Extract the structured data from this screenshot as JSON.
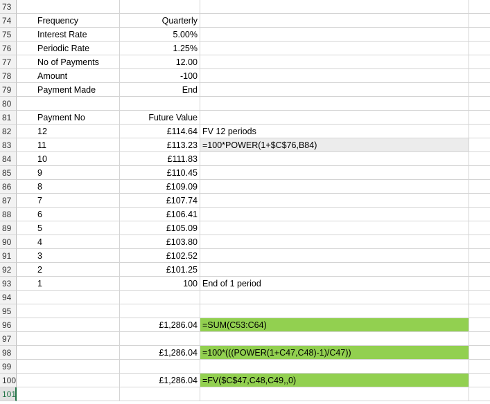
{
  "rows": [
    {
      "num": "73",
      "b": "",
      "c": "",
      "d": "",
      "style": ""
    },
    {
      "num": "74",
      "b": "Frequency",
      "c": "Quarterly",
      "d": "",
      "style": ""
    },
    {
      "num": "75",
      "b": "Interest Rate",
      "c": "5.00%",
      "d": "",
      "style": ""
    },
    {
      "num": "76",
      "b": "Periodic Rate",
      "c": "1.25%",
      "d": "",
      "style": ""
    },
    {
      "num": "77",
      "b": "No of Payments",
      "c": "12.00",
      "d": "",
      "style": ""
    },
    {
      "num": "78",
      "b": "Amount",
      "c": "-100",
      "d": "",
      "style": ""
    },
    {
      "num": "79",
      "b": "Payment Made",
      "c": "End",
      "d": "",
      "style": ""
    },
    {
      "num": "80",
      "b": "",
      "c": "",
      "d": "",
      "style": ""
    },
    {
      "num": "81",
      "b": "Payment No",
      "c": "Future Value",
      "d": "",
      "style": ""
    },
    {
      "num": "82",
      "b": "12",
      "c": "£114.64",
      "d": "FV 12 periods",
      "style": ""
    },
    {
      "num": "83",
      "b": "11",
      "c": "£113.23",
      "d": "=100*POWER(1+$C$76,B84)",
      "style": "grey"
    },
    {
      "num": "84",
      "b": "10",
      "c": "£111.83",
      "d": "",
      "style": ""
    },
    {
      "num": "85",
      "b": "9",
      "c": "£110.45",
      "d": "",
      "style": ""
    },
    {
      "num": "86",
      "b": "8",
      "c": "£109.09",
      "d": "",
      "style": ""
    },
    {
      "num": "87",
      "b": "7",
      "c": "£107.74",
      "d": "",
      "style": ""
    },
    {
      "num": "88",
      "b": "6",
      "c": "£106.41",
      "d": "",
      "style": ""
    },
    {
      "num": "89",
      "b": "5",
      "c": "£105.09",
      "d": "",
      "style": ""
    },
    {
      "num": "90",
      "b": "4",
      "c": "£103.80",
      "d": "",
      "style": ""
    },
    {
      "num": "91",
      "b": "3",
      "c": "£102.52",
      "d": "",
      "style": ""
    },
    {
      "num": "92",
      "b": "2",
      "c": "£101.25",
      "d": "",
      "style": ""
    },
    {
      "num": "93",
      "b": "1",
      "c": "100",
      "d": "End of 1 period",
      "style": ""
    },
    {
      "num": "94",
      "b": "",
      "c": "",
      "d": "",
      "style": ""
    },
    {
      "num": "95",
      "b": "",
      "c": "",
      "d": "",
      "style": ""
    },
    {
      "num": "96",
      "b": "",
      "c": "£1,286.04",
      "d": "=SUM(C53:C64)",
      "style": "green"
    },
    {
      "num": "97",
      "b": "",
      "c": "",
      "d": "",
      "style": ""
    },
    {
      "num": "98",
      "b": "",
      "c": "£1,286.04",
      "d": "=100*(((POWER(1+C47,C48)-1)/C47))",
      "style": "green"
    },
    {
      "num": "99",
      "b": "",
      "c": "",
      "d": "",
      "style": ""
    },
    {
      "num": "100",
      "b": "",
      "c": "£1,286.04",
      "d": "=FV($C$47,C48,C49,,0)",
      "style": "green"
    },
    {
      "num": "101",
      "b": "",
      "c": "",
      "d": "",
      "style": "",
      "selected": true
    }
  ],
  "colors": {
    "green_fill": "#92d050",
    "grey_fill": "#ececec",
    "gridline": "#d4d4d4",
    "header_bg": "#f2f2f2",
    "selection_accent": "#217346"
  }
}
